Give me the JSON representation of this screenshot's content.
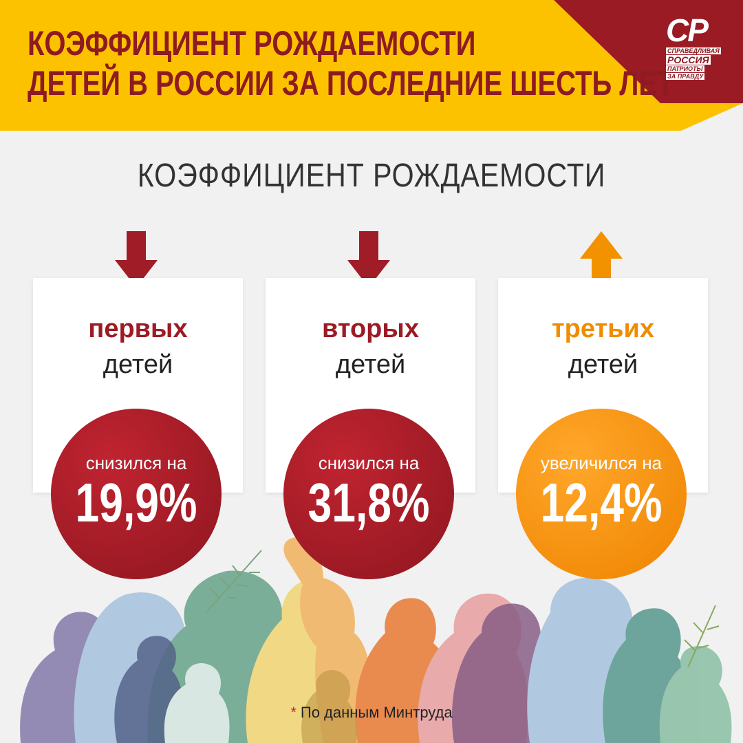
{
  "header": {
    "title_line1": "КОЭФФИЦИЕНТ РОЖДАЕМОСТИ",
    "title_line2": "ДЕТЕЙ В РОССИИ ЗА ПОСЛЕДНИЕ ШЕСТЬ ЛЕТ",
    "logo": {
      "mark": "СР",
      "line1": "СПРАВЕДЛИВАЯ",
      "line2": "РОССИЯ",
      "line3": "ПАТРИОТЫ",
      "line4": "ЗА ПРАВДУ"
    }
  },
  "subtitle": "КОЭФФИЦИЕНТ РОЖДАЕМОСТИ",
  "cards": [
    {
      "word": "первых",
      "sub": "детей",
      "direction": "down",
      "label": "снизился на",
      "value": "19,9%",
      "color": "#a01c26"
    },
    {
      "word": "вторых",
      "sub": "детей",
      "direction": "down",
      "label": "снизился на",
      "value": "31,8%",
      "color": "#a01c26"
    },
    {
      "word": "третьих",
      "sub": "детей",
      "direction": "up",
      "label": "увеличился на",
      "value": "12,4%",
      "color": "#f39200"
    }
  ],
  "footnote": {
    "star": "*",
    "text": "По данным Минтруда"
  },
  "colors": {
    "header_yellow": "#fcc200",
    "brand_red": "#9a1b24",
    "accent_orange": "#f39200"
  }
}
